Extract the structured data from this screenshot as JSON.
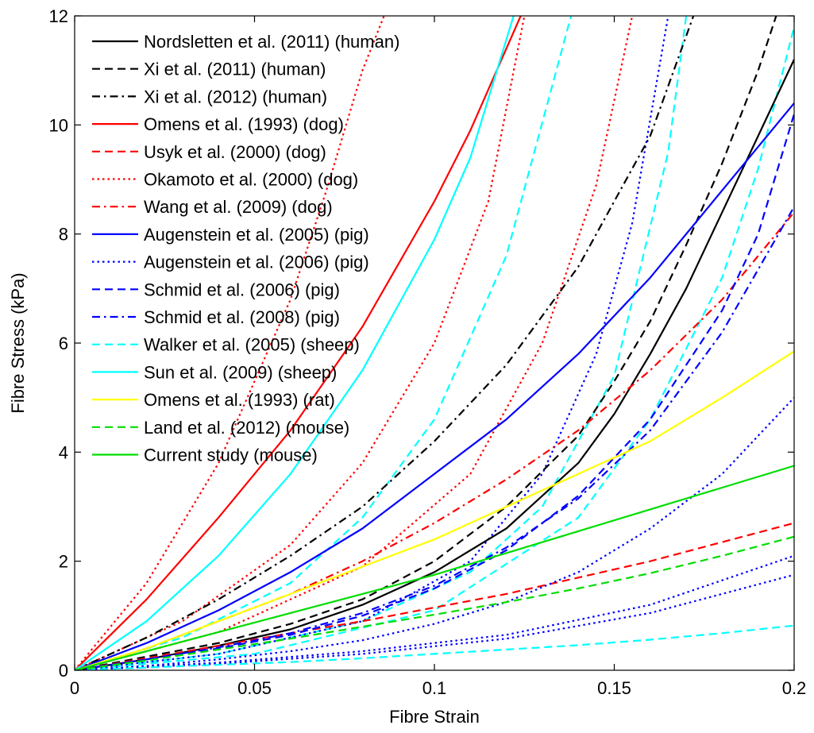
{
  "chart_data": {
    "type": "line",
    "xlabel": "Fibre Strain",
    "ylabel": "Fibre Stress (kPa)",
    "xlim": [
      0,
      0.2
    ],
    "ylim": [
      0,
      12
    ],
    "xticks": [
      0,
      0.05,
      0.1,
      0.15,
      0.2
    ],
    "xtick_labels": [
      "0",
      "0.05",
      "0.1",
      "0.15",
      "0.2"
    ],
    "yticks": [
      0,
      2,
      4,
      6,
      8,
      10,
      12
    ],
    "ytick_labels": [
      "0",
      "2",
      "4",
      "6",
      "8",
      "10",
      "12"
    ],
    "grid": false,
    "legend_position": "top-left",
    "series": [
      {
        "name": "Nordsletten et al. (2011) (human)",
        "color": "#000000",
        "dash": "solid",
        "x": [
          0,
          0.02,
          0.04,
          0.06,
          0.08,
          0.1,
          0.12,
          0.14,
          0.15,
          0.16,
          0.17,
          0.18,
          0.19,
          0.2
        ],
        "y": [
          0,
          0.2,
          0.45,
          0.75,
          1.2,
          1.8,
          2.6,
          3.8,
          4.7,
          5.8,
          7.0,
          8.4,
          9.8,
          11.2
        ]
      },
      {
        "name": "Xi et al. (2011) (human)",
        "color": "#000000",
        "dash": "dashed",
        "x": [
          0,
          0.02,
          0.04,
          0.06,
          0.08,
          0.1,
          0.12,
          0.14,
          0.15,
          0.16,
          0.17,
          0.18,
          0.19,
          0.195
        ],
        "y": [
          0,
          0.25,
          0.5,
          0.85,
          1.3,
          2.0,
          3.0,
          4.3,
          5.3,
          6.4,
          7.8,
          9.3,
          11.0,
          12.0
        ]
      },
      {
        "name": "Xi et al. (2012) (human)",
        "color": "#000000",
        "dash": "dashdot",
        "x": [
          0,
          0.02,
          0.04,
          0.06,
          0.08,
          0.1,
          0.12,
          0.14,
          0.16,
          0.172
        ],
        "y": [
          0,
          0.6,
          1.3,
          2.1,
          3.0,
          4.2,
          5.6,
          7.4,
          9.8,
          12.0
        ]
      },
      {
        "name": "Omens et al. (1993) (dog)",
        "color": "#ff0000",
        "dash": "solid",
        "x": [
          0,
          0.02,
          0.04,
          0.06,
          0.08,
          0.1,
          0.11,
          0.124
        ],
        "y": [
          0,
          1.3,
          2.8,
          4.4,
          6.3,
          8.6,
          9.9,
          12.0
        ]
      },
      {
        "name": "Usyk et al. (2000) (dog)",
        "color": "#ff0000",
        "dash": "dashed",
        "x": [
          0,
          0.02,
          0.04,
          0.06,
          0.08,
          0.1,
          0.12,
          0.14,
          0.16,
          0.18,
          0.2
        ],
        "y": [
          0,
          0.22,
          0.45,
          0.68,
          0.9,
          1.15,
          1.4,
          1.7,
          2.0,
          2.35,
          2.7
        ]
      },
      {
        "name": "Okamoto et al. (2000) (dog)",
        "color": "#ff0000",
        "dash": "dotted",
        "x": [
          0,
          0.02,
          0.04,
          0.06,
          0.07,
          0.08,
          0.086
        ],
        "y": [
          0,
          1.6,
          3.8,
          6.8,
          8.8,
          11.0,
          12.0
        ]
      },
      {
        "name": "Wang et al. (2009) (dog)",
        "color": "#ff0000",
        "dash": "dashdot",
        "x": [
          0,
          0.02,
          0.04,
          0.06,
          0.08,
          0.1,
          0.12,
          0.14,
          0.16,
          0.18,
          0.2
        ],
        "y": [
          0,
          0.4,
          0.9,
          1.4,
          2.0,
          2.7,
          3.5,
          4.4,
          5.5,
          6.8,
          8.4
        ]
      },
      {
        "name": "Augenstein et al. (2005) (pig)",
        "color": "#0000ff",
        "dash": "solid",
        "x": [
          0,
          0.02,
          0.04,
          0.06,
          0.08,
          0.1,
          0.12,
          0.14,
          0.16,
          0.18,
          0.2
        ],
        "y": [
          0,
          0.5,
          1.1,
          1.8,
          2.6,
          3.6,
          4.6,
          5.8,
          7.2,
          8.8,
          10.4
        ]
      },
      {
        "name": "Augenstein et al. (2006) (pig)",
        "color": "#0000ff",
        "dash": "dotted",
        "x": [
          0,
          0.02,
          0.04,
          0.06,
          0.08,
          0.1,
          0.12,
          0.14,
          0.16,
          0.18,
          0.2
        ],
        "y": [
          0,
          0.08,
          0.2,
          0.35,
          0.55,
          0.85,
          1.25,
          1.8,
          2.6,
          3.6,
          5.0
        ]
      },
      {
        "name": "Schmid et al. (2006) (pig)",
        "color": "#0000ff",
        "dash": "dashed",
        "x": [
          0,
          0.02,
          0.04,
          0.06,
          0.08,
          0.1,
          0.12,
          0.14,
          0.16,
          0.18,
          0.19,
          0.2
        ],
        "y": [
          0,
          0.2,
          0.4,
          0.65,
          1.0,
          1.5,
          2.2,
          3.2,
          4.6,
          6.6,
          8.0,
          10.2
        ]
      },
      {
        "name": "Schmid et al. (2008) (pig)",
        "color": "#0000ff",
        "dash": "dashdot",
        "x": [
          0,
          0.02,
          0.04,
          0.06,
          0.08,
          0.1,
          0.12,
          0.14,
          0.16,
          0.18,
          0.2
        ],
        "y": [
          0,
          0.2,
          0.42,
          0.68,
          1.05,
          1.55,
          2.25,
          3.15,
          4.4,
          6.2,
          8.5
        ]
      },
      {
        "name": "Walker et al. (2005) (sheep)",
        "color": "#00ffff",
        "dash": "dashed",
        "x": [
          0,
          0.02,
          0.04,
          0.06,
          0.08,
          0.1,
          0.12,
          0.14,
          0.16,
          0.18,
          0.2
        ],
        "y": [
          0,
          0.05,
          0.1,
          0.15,
          0.22,
          0.3,
          0.38,
          0.46,
          0.56,
          0.68,
          0.82
        ]
      },
      {
        "name": "Sun et al. (2009) (sheep)",
        "color": "#00ffff",
        "dash": "solid",
        "x": [
          0,
          0.02,
          0.04,
          0.06,
          0.08,
          0.1,
          0.11,
          0.122
        ],
        "y": [
          0,
          0.9,
          2.1,
          3.6,
          5.5,
          7.9,
          9.4,
          12.0
        ]
      },
      {
        "name": "Omens et al. (1993) (rat)",
        "color": "#ffff00",
        "dash": "solid",
        "x": [
          0,
          0.02,
          0.04,
          0.06,
          0.08,
          0.1,
          0.12,
          0.14,
          0.16,
          0.18,
          0.2
        ],
        "y": [
          0,
          0.4,
          0.9,
          1.4,
          1.9,
          2.4,
          3.0,
          3.6,
          4.2,
          5.0,
          5.85
        ]
      },
      {
        "name": "Land et al. (2012) (mouse)",
        "color": "#00dd00",
        "dash": "dashed",
        "x": [
          0,
          0.02,
          0.04,
          0.06,
          0.08,
          0.1,
          0.12,
          0.14,
          0.16,
          0.18,
          0.2
        ],
        "y": [
          0,
          0.18,
          0.38,
          0.58,
          0.8,
          1.02,
          1.25,
          1.5,
          1.78,
          2.1,
          2.45
        ]
      },
      {
        "name": "Current study (mouse)",
        "color": "#00dd00",
        "dash": "solid",
        "x": [
          0,
          0.02,
          0.04,
          0.06,
          0.08,
          0.1,
          0.12,
          0.14,
          0.16,
          0.18,
          0.2
        ],
        "y": [
          0,
          0.35,
          0.7,
          1.05,
          1.4,
          1.75,
          2.15,
          2.55,
          2.95,
          3.35,
          3.75
        ]
      }
    ],
    "extra_unlabeled_lines": [
      {
        "color": "#ff0000",
        "dash": "dotted",
        "x": [
          0,
          0.03,
          0.06,
          0.08,
          0.1,
          0.115,
          0.125
        ],
        "y": [
          0,
          0.9,
          2.3,
          3.8,
          6.0,
          8.6,
          12.0
        ]
      },
      {
        "color": "#ff0000",
        "dash": "dotted",
        "x": [
          0,
          0.04,
          0.08,
          0.11,
          0.13,
          0.145,
          0.155
        ],
        "y": [
          0,
          0.7,
          1.9,
          3.6,
          6.0,
          8.9,
          12.0
        ]
      },
      {
        "color": "#00ffff",
        "dash": "dashed",
        "x": [
          0,
          0.03,
          0.06,
          0.08,
          0.1,
          0.12,
          0.138
        ],
        "y": [
          0,
          0.6,
          1.6,
          2.8,
          4.6,
          7.6,
          12.0
        ]
      },
      {
        "color": "#00ffff",
        "dash": "dashed",
        "x": [
          0,
          0.04,
          0.08,
          0.11,
          0.13,
          0.15,
          0.165,
          0.17
        ],
        "y": [
          0,
          0.3,
          0.9,
          1.8,
          3.0,
          5.4,
          9.5,
          12.0
        ]
      },
      {
        "color": "#00ffff",
        "dash": "dashed",
        "x": [
          0,
          0.05,
          0.1,
          0.14,
          0.16,
          0.18,
          0.19,
          0.2
        ],
        "y": [
          0,
          0.3,
          1.1,
          2.8,
          4.6,
          7.2,
          9.2,
          11.8
        ]
      },
      {
        "color": "#0000ff",
        "dash": "dotted",
        "x": [
          0,
          0.04,
          0.08,
          0.11,
          0.13,
          0.145,
          0.155,
          0.165
        ],
        "y": [
          0,
          0.3,
          0.9,
          2.0,
          3.6,
          5.8,
          8.2,
          12.0
        ]
      },
      {
        "color": "#0000ff",
        "dash": "dotted",
        "x": [
          0,
          0.04,
          0.08,
          0.12,
          0.16,
          0.2
        ],
        "y": [
          0,
          0.12,
          0.3,
          0.58,
          1.05,
          1.75
        ]
      },
      {
        "color": "#0000ff",
        "dash": "dotted",
        "x": [
          0,
          0.04,
          0.08,
          0.12,
          0.16,
          0.2
        ],
        "y": [
          0,
          0.14,
          0.35,
          0.65,
          1.2,
          2.1
        ]
      }
    ]
  }
}
